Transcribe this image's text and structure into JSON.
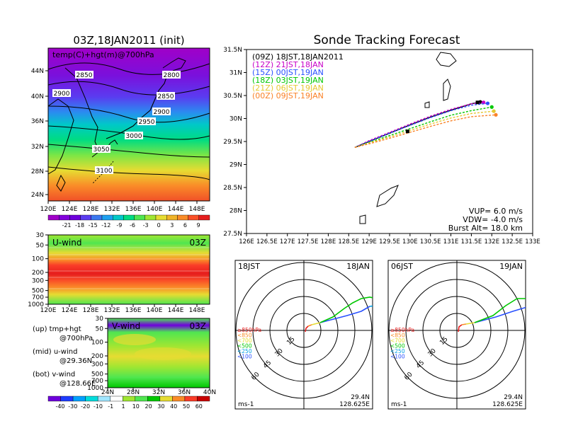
{
  "header": {
    "left_title": "03Z,18JAN2011 (init)",
    "right_title": "Sonde Tracking Forecast"
  },
  "temp_panel": {
    "label": "temp(C)+hgt(m)@700hPa",
    "lat_ticks": [
      "44N",
      "40N",
      "36N",
      "32N",
      "28N",
      "24N"
    ],
    "lon_ticks": [
      "120E",
      "124E",
      "128E",
      "132E",
      "136E",
      "140E",
      "144E",
      "148E"
    ],
    "contour_labels": [
      "2850",
      "2800",
      "2900",
      "2850",
      "2900",
      "2950",
      "3000",
      "3050",
      "3100"
    ],
    "colorbar": {
      "colors": [
        "#a000c8",
        "#8200dc",
        "#6e00dc",
        "#5a3cf0",
        "#3c78f0",
        "#1ea0f0",
        "#00c8c8",
        "#00dc82",
        "#50e650",
        "#a0e632",
        "#e6dc32",
        "#f0b428",
        "#fa8c28",
        "#fa5028",
        "#e61e1e"
      ],
      "labels": [
        "-21",
        "-18",
        "-15",
        "-12",
        "-9",
        "-6",
        "-3",
        "0",
        "3",
        "6",
        "9"
      ]
    }
  },
  "u_panel": {
    "label": "U-wind",
    "time": "03Z",
    "y_ticks": [
      "30",
      "50",
      "100",
      "200",
      "300",
      "500",
      "700",
      "1000"
    ],
    "x_ticks": [
      "120E",
      "124E",
      "128E",
      "132E",
      "136E",
      "140E",
      "144E",
      "148E"
    ]
  },
  "v_panel": {
    "label": "V-wind",
    "time": "03Z",
    "y_ticks": [
      "30",
      "50",
      "100",
      "200",
      "300",
      "500",
      "700",
      "1000"
    ],
    "x_ticks": [
      "24N",
      "28N",
      "32N",
      "36N",
      "40N"
    ],
    "colorbar": {
      "colors": [
        "#6e00dc",
        "#1e3cff",
        "#00a0ff",
        "#00dcdc",
        "#a0e6ff",
        "#ffffff",
        "#a0e632",
        "#50e650",
        "#00c800",
        "#e6dc32",
        "#fa8c28",
        "#fa3c28",
        "#c80000"
      ],
      "labels": [
        "-40",
        "-30",
        "-20",
        "-10",
        "-1",
        "1",
        "10",
        "20",
        "30",
        "40",
        "50",
        "60"
      ]
    }
  },
  "notes": {
    "up": "(up) tmp+hgt",
    "up_sub": "@700hPa",
    "mid": "(mid) u-wind",
    "mid_sub": "@29.36N",
    "bot": "(bot) v-wind",
    "bot_sub": "@128.66E"
  },
  "track_panel": {
    "y_ticks": [
      "31.5N",
      "31N",
      "30.5N",
      "30N",
      "29.5N",
      "29N",
      "28.5N",
      "28N",
      "27.5N"
    ],
    "x_ticks": [
      "126E",
      "126.5E",
      "127E",
      "127.5E",
      "128E",
      "128.5E",
      "129E",
      "129.5E",
      "130E",
      "130.5E",
      "131E",
      "131.5E",
      "132E",
      "132.5E",
      "133E"
    ],
    "info": [
      "VUP= 6.0 m/s",
      "VDW= -4.0 m/s",
      "Burst Alt= 18.0 km"
    ]
  },
  "chart_data": {
    "type": "line",
    "xlim": [
      126,
      133
    ],
    "ylim": [
      27.5,
      31.5
    ],
    "series": [
      {
        "name": "(09Z)  18JST,18JAN2011",
        "color": "#000000",
        "dash": false,
        "x": [
          128.65,
          129.0,
          129.5,
          130.0,
          130.5,
          131.0,
          131.5,
          131.72
        ],
        "y": [
          29.37,
          29.5,
          29.68,
          29.86,
          30.03,
          30.18,
          30.32,
          30.36
        ]
      },
      {
        "name": "(12Z)  21JST,18JAN",
        "color": "#c800c8",
        "dash": true,
        "x": [
          128.65,
          129.0,
          129.5,
          130.0,
          130.5,
          131.0,
          131.5,
          131.8
        ],
        "y": [
          29.37,
          29.52,
          29.7,
          29.88,
          30.05,
          30.2,
          30.32,
          30.35
        ]
      },
      {
        "name": "(15Z)  00JST,19JAN",
        "color": "#2850ff",
        "dash": true,
        "x": [
          128.65,
          129.0,
          129.5,
          130.0,
          130.5,
          131.0,
          131.5,
          131.9
        ],
        "y": [
          29.37,
          29.5,
          29.68,
          29.85,
          30.02,
          30.17,
          30.29,
          30.33
        ]
      },
      {
        "name": "(18Z)  03JST,19JAN",
        "color": "#00c800",
        "dash": true,
        "x": [
          128.65,
          129.0,
          129.5,
          130.0,
          130.5,
          131.0,
          131.5,
          132.0
        ],
        "y": [
          29.37,
          29.48,
          29.63,
          29.78,
          29.93,
          30.07,
          30.17,
          30.25
        ]
      },
      {
        "name": "(21Z)  06JST,19JAN",
        "color": "#e6c832",
        "dash": true,
        "x": [
          128.65,
          129.0,
          129.5,
          130.0,
          130.5,
          131.0,
          131.5,
          132.05
        ],
        "y": [
          29.37,
          29.47,
          29.6,
          29.74,
          29.88,
          30.01,
          30.11,
          30.16
        ]
      },
      {
        "name": "(00Z)  09JST,19JAN",
        "color": "#fa8228",
        "dash": true,
        "x": [
          128.65,
          129.0,
          129.5,
          130.0,
          130.5,
          131.0,
          131.5,
          132.1
        ],
        "y": [
          29.37,
          29.45,
          29.57,
          29.7,
          29.83,
          29.95,
          30.04,
          30.08
        ]
      }
    ]
  },
  "hodographs": [
    {
      "left": "18JST",
      "right": "18JAN",
      "unit": "ms-1",
      "lat": "29.4N",
      "lon": "128.625E",
      "ring_labels": [
        "15",
        "30",
        "45",
        "60"
      ],
      "levels": [
        "≥850hPa",
        "<850",
        "<700",
        "<500",
        "<250",
        "<100"
      ],
      "level_colors": [
        "#e61e1e",
        "#fa8c28",
        "#e6dc32",
        "#00c800",
        "#00a0e6",
        "#2850ff"
      ]
    },
    {
      "left": "06JST",
      "right": "19JAN",
      "unit": "ms-1",
      "lat": "29.4N",
      "lon": "128.625E",
      "ring_labels": [
        "15",
        "30",
        "45",
        "60"
      ],
      "levels": [
        "≥850hPa",
        "<850",
        "<700",
        "<500",
        "<250",
        "<100"
      ],
      "level_colors": [
        "#e61e1e",
        "#fa8c28",
        "#e6dc32",
        "#00c800",
        "#00a0e6",
        "#2850ff"
      ]
    }
  ]
}
